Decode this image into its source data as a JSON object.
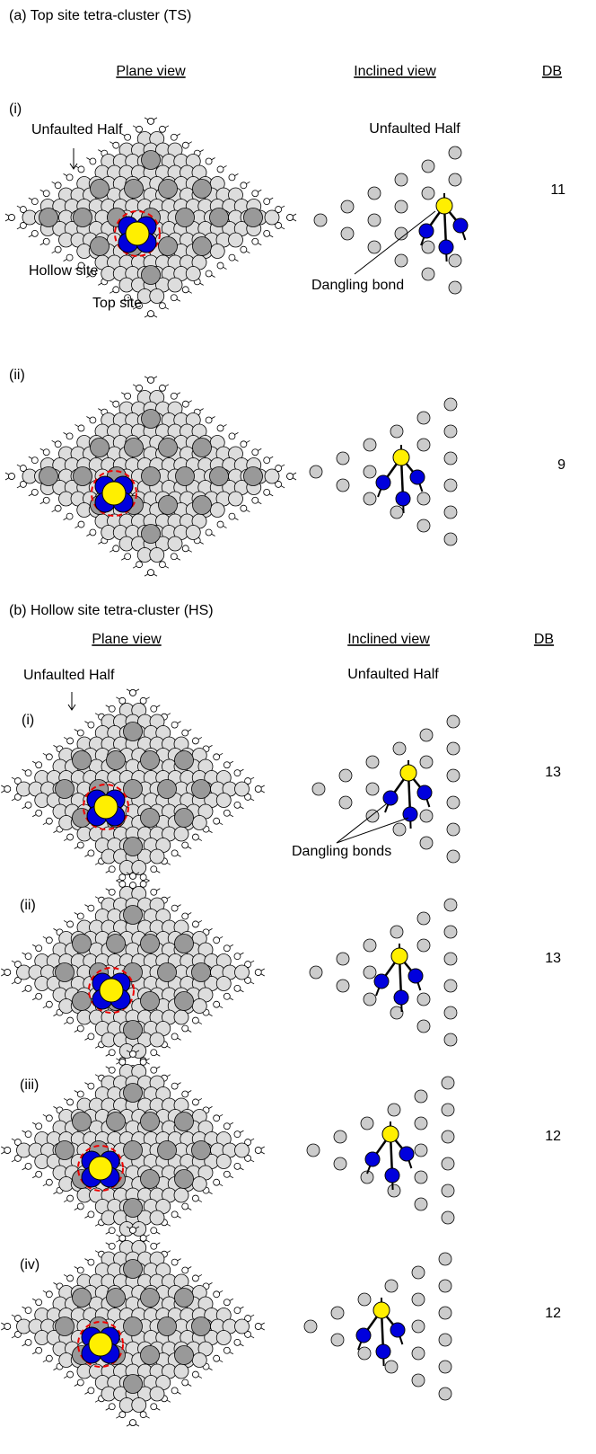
{
  "sections": [
    {
      "title": "(a) Top site tetra-cluster (TS)",
      "headers": [
        "Plane view",
        "Inclined view",
        "DB"
      ],
      "plane_label": "Unfaulted Half",
      "inclined_label": "Unfaulted Half",
      "panels": [
        {
          "label": "(i)",
          "db": 11,
          "annotations": [
            "Hollow site",
            "Top site",
            "Dangling bond"
          ]
        },
        {
          "label": "(ii)",
          "db": 9
        }
      ]
    },
    {
      "title": "(b) Hollow site tetra-cluster (HS)",
      "headers": [
        "Plane view",
        "Inclined view",
        "DB"
      ],
      "plane_label": "Unfaulted Half",
      "inclined_label": "Unfaulted Half",
      "panels": [
        {
          "label": "(i)",
          "db": 13,
          "annotations": [
            "Dangling bonds"
          ]
        },
        {
          "label": "(ii)",
          "db": 13
        },
        {
          "label": "(iii)",
          "db": 12
        },
        {
          "label": "(iv)",
          "db": 12
        }
      ]
    }
  ]
}
